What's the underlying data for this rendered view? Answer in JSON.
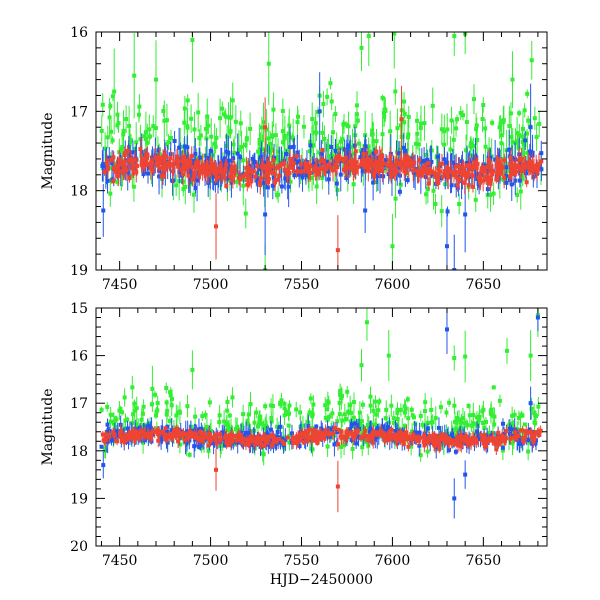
{
  "chart_data": [
    {
      "type": "scatter",
      "title": "",
      "xlabel": "",
      "ylabel": "Magnitude",
      "xlim": [
        7437,
        7685
      ],
      "ylim": [
        19,
        16
      ],
      "y_inverted": true,
      "xticks": [
        7450,
        7500,
        7550,
        7600,
        7650
      ],
      "xtick_labels": [
        "7450",
        "7500",
        "7550",
        "7600",
        "7650"
      ],
      "yticks": [
        16,
        17,
        18,
        19
      ],
      "ytick_labels": [
        "16",
        "17",
        "18",
        "19"
      ],
      "series": [
        {
          "name": "green",
          "color": "#33ee33",
          "base_mag": 17.65,
          "scatter": 0.35,
          "bright_outliers": [
            [
              7447,
              16.75
            ],
            [
              7458,
              16.55
            ],
            [
              7470,
              16.6
            ],
            [
              7490,
              16.1
            ],
            [
              7532,
              16.4
            ],
            [
              7583,
              16.2
            ],
            [
              7587,
              16.05
            ],
            [
              7601,
              16.02
            ],
            [
              7634,
              16.05
            ],
            [
              7640,
              16.02
            ],
            [
              7666,
              16.6
            ],
            [
              7585,
              17.3
            ],
            [
              7530,
              19.0
            ],
            [
              7600,
              18.7
            ]
          ]
        },
        {
          "name": "blue",
          "color": "#2255ee",
          "base_mag": 17.7,
          "scatter": 0.2,
          "faint_outliers": [
            [
              7441,
              18.25
            ],
            [
              7530,
              18.3
            ],
            [
              7560,
              17.0
            ],
            [
              7585,
              18.25
            ],
            [
              7630,
              18.7
            ],
            [
              7634,
              19.0
            ],
            [
              7640,
              18.3
            ],
            [
              7676,
              17.2
            ]
          ]
        },
        {
          "name": "red",
          "color": "#ee4433",
          "base_mag": 17.72,
          "scatter": 0.12,
          "faint_outliers": [
            [
              7503,
              18.45
            ],
            [
              7570,
              18.75
            ],
            [
              7530,
              17.2
            ],
            [
              7605,
              17.1
            ]
          ]
        }
      ]
    },
    {
      "type": "scatter",
      "title": "",
      "xlabel": "HJD−2450000",
      "ylabel": "Magnitude",
      "xlim": [
        7437,
        7685
      ],
      "ylim": [
        20,
        15
      ],
      "y_inverted": true,
      "xticks": [
        7450,
        7500,
        7550,
        7600,
        7650
      ],
      "xtick_labels": [
        "7450",
        "7500",
        "7550",
        "7600",
        "7650"
      ],
      "yticks": [
        15,
        16,
        17,
        18,
        19,
        20
      ],
      "ytick_labels": [
        "15",
        "16",
        "17",
        "18",
        "19",
        "20"
      ],
      "series": [
        {
          "name": "green",
          "color": "#33ee33",
          "base_mag": 17.65,
          "scatter": 0.3,
          "bright_outliers": [
            [
              7490,
              16.3
            ],
            [
              7583,
              16.2
            ],
            [
              7586,
              15.3
            ],
            [
              7598,
              16.0
            ],
            [
              7634,
              16.05
            ],
            [
              7640,
              16.02
            ],
            [
              7663,
              15.9
            ],
            [
              7676,
              16.0
            ],
            [
              7680,
              15.15
            ],
            [
              7468,
              16.7
            ]
          ]
        },
        {
          "name": "blue",
          "color": "#2255ee",
          "base_mag": 17.7,
          "scatter": 0.18,
          "faint_outliers": [
            [
              7441,
              18.3
            ],
            [
              7630,
              15.45
            ],
            [
              7634,
              19.0
            ],
            [
              7640,
              18.5
            ],
            [
              7676,
              17.0
            ],
            [
              7680,
              15.2
            ]
          ]
        },
        {
          "name": "red",
          "color": "#ee4433",
          "base_mag": 17.72,
          "scatter": 0.12,
          "faint_outliers": [
            [
              7570,
              18.75
            ],
            [
              7503,
              18.4
            ]
          ]
        }
      ]
    }
  ]
}
